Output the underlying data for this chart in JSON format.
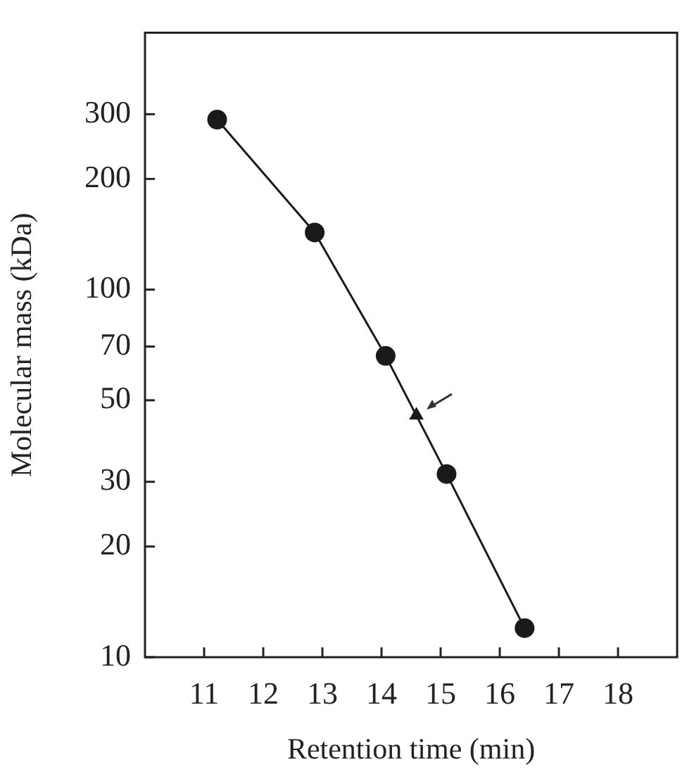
{
  "chart_data": {
    "type": "line",
    "xlabel": "Retention time (min)",
    "ylabel": "Molecular mass (kDa)",
    "log": "y",
    "grid": false,
    "legend": false,
    "xlim": [
      10,
      19
    ],
    "xticks": [
      11,
      12,
      13,
      14,
      15,
      16,
      17,
      18
    ],
    "ylim": [
      10,
      500
    ],
    "yticks": [
      10,
      20,
      30,
      50,
      70,
      100,
      200,
      300
    ],
    "series": [
      {
        "type": "line",
        "color": "#1a1a1a",
        "marker": "circle",
        "x": [
          11.22,
          12.87,
          14.07,
          15.1,
          16.42
        ],
        "values": [
          290,
          143,
          66,
          31.5,
          12
        ]
      },
      {
        "type": "scatter",
        "color": "#1a1a1a",
        "marker": "triangle",
        "x": [
          14.59
        ],
        "values": [
          45.5
        ]
      }
    ]
  }
}
